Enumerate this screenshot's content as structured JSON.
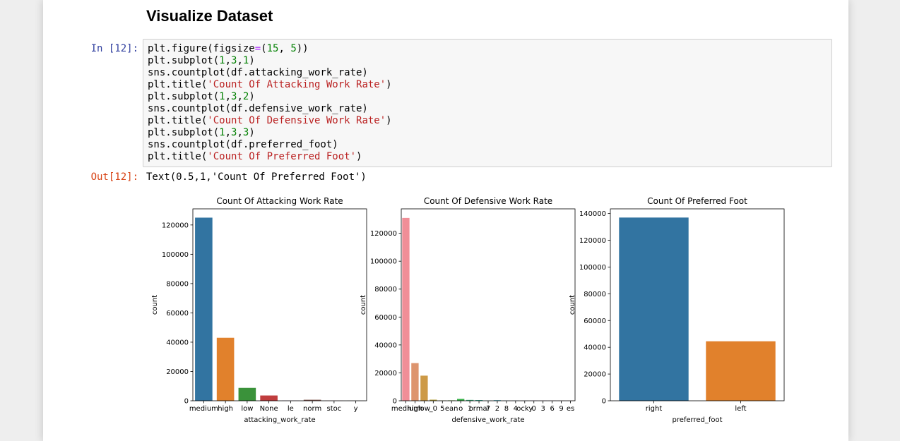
{
  "notebook": {
    "heading": "Visualize Dataset",
    "in_prompt": "In [12]:",
    "out_prompt": "Out[12]:",
    "code_lines": [
      [
        {
          "t": "plt.figure(figsize"
        },
        {
          "t": "=",
          "c": "op"
        },
        {
          "t": "("
        },
        {
          "t": "15",
          "c": "num"
        },
        {
          "t": ", "
        },
        {
          "t": "5",
          "c": "num"
        },
        {
          "t": "))"
        }
      ],
      [
        {
          "t": "plt.subplot("
        },
        {
          "t": "1",
          "c": "num"
        },
        {
          "t": ","
        },
        {
          "t": "3",
          "c": "num"
        },
        {
          "t": ","
        },
        {
          "t": "1",
          "c": "num"
        },
        {
          "t": ")"
        }
      ],
      [
        {
          "t": "sns.countplot(df.attacking_work_rate)"
        }
      ],
      [
        {
          "t": "plt.title("
        },
        {
          "t": "'Count Of Attacking Work Rate'",
          "c": "str"
        },
        {
          "t": ")"
        }
      ],
      [
        {
          "t": "plt.subplot("
        },
        {
          "t": "1",
          "c": "num"
        },
        {
          "t": ","
        },
        {
          "t": "3",
          "c": "num"
        },
        {
          "t": ","
        },
        {
          "t": "2",
          "c": "num"
        },
        {
          "t": ")"
        }
      ],
      [
        {
          "t": "sns.countplot(df.defensive_work_rate)"
        }
      ],
      [
        {
          "t": "plt.title("
        },
        {
          "t": "'Count Of Defensive Work Rate'",
          "c": "str"
        },
        {
          "t": ")"
        }
      ],
      [
        {
          "t": "plt.subplot("
        },
        {
          "t": "1",
          "c": "num"
        },
        {
          "t": ","
        },
        {
          "t": "3",
          "c": "num"
        },
        {
          "t": ","
        },
        {
          "t": "3",
          "c": "num"
        },
        {
          "t": ")"
        }
      ],
      [
        {
          "t": "sns.countplot(df.preferred_foot)"
        }
      ],
      [
        {
          "t": "plt.title("
        },
        {
          "t": "'Count Of Preferred Foot'",
          "c": "str"
        },
        {
          "t": ")"
        }
      ]
    ],
    "output_text": "Text(0.5,1,'Count Of Preferred Foot')"
  },
  "colors": {
    "prompt_in": "#303f9f",
    "prompt_out": "#d84315",
    "code_string": "#ba2121",
    "code_number": "#008000",
    "code_operator": "#aa22ff"
  },
  "chart_data": [
    {
      "type": "bar",
      "title": "Count Of Attacking Work Rate",
      "xlabel": "attacking_work_rate",
      "ylabel": "count",
      "categories": [
        "medium",
        "high",
        "low",
        "None",
        "le",
        "norm",
        "stoc",
        "y"
      ],
      "values": [
        125000,
        43000,
        8800,
        3600,
        120,
        700,
        100,
        60
      ],
      "colors": [
        "#3274a1",
        "#e1812c",
        "#3a923a",
        "#c03d3e",
        "#9372b2",
        "#845b53",
        "#d684bd",
        "#7f7f7f"
      ],
      "ylim": [
        0,
        131000
      ],
      "yticks": [
        0,
        20000,
        40000,
        60000,
        80000,
        100000,
        120000
      ]
    },
    {
      "type": "bar",
      "title": "Count Of Defensive Work Rate",
      "xlabel": "defensive_work_rate",
      "ylabel": "count",
      "categories": [
        "medium",
        "high",
        "low",
        "_0",
        "5",
        "ean",
        "o",
        "1",
        "ormal",
        "7",
        "2",
        "8",
        "4",
        "ocky",
        "0",
        "3",
        "6",
        "9",
        "es"
      ],
      "values": [
        131000,
        27000,
        18000,
        800,
        200,
        300,
        1400,
        600,
        500,
        150,
        400,
        100,
        120,
        80,
        150,
        100,
        100,
        80,
        60
      ],
      "colors": [
        "#f08e97",
        "#dd946e",
        "#cd9a47",
        "#b5a240",
        "#9ba841",
        "#78ae46",
        "#3ab34b",
        "#3cb37e",
        "#3db09a",
        "#3eadae",
        "#3fa9bf",
        "#43a4d0",
        "#6a9de4",
        "#9e91ee",
        "#c488ef",
        "#e07de1",
        "#ee7dc9",
        "#f384b0",
        "#f48b9a"
      ],
      "ylim": [
        0,
        137500
      ],
      "yticks": [
        0,
        20000,
        40000,
        60000,
        80000,
        100000,
        120000
      ]
    },
    {
      "type": "bar",
      "title": "Count Of Preferred Foot",
      "xlabel": "preferred_foot",
      "ylabel": "count",
      "categories": [
        "right",
        "left"
      ],
      "values": [
        137000,
        44500
      ],
      "colors": [
        "#3274a1",
        "#e1812c"
      ],
      "ylim": [
        0,
        143500
      ],
      "yticks": [
        0,
        20000,
        40000,
        60000,
        80000,
        100000,
        120000,
        140000
      ]
    }
  ]
}
